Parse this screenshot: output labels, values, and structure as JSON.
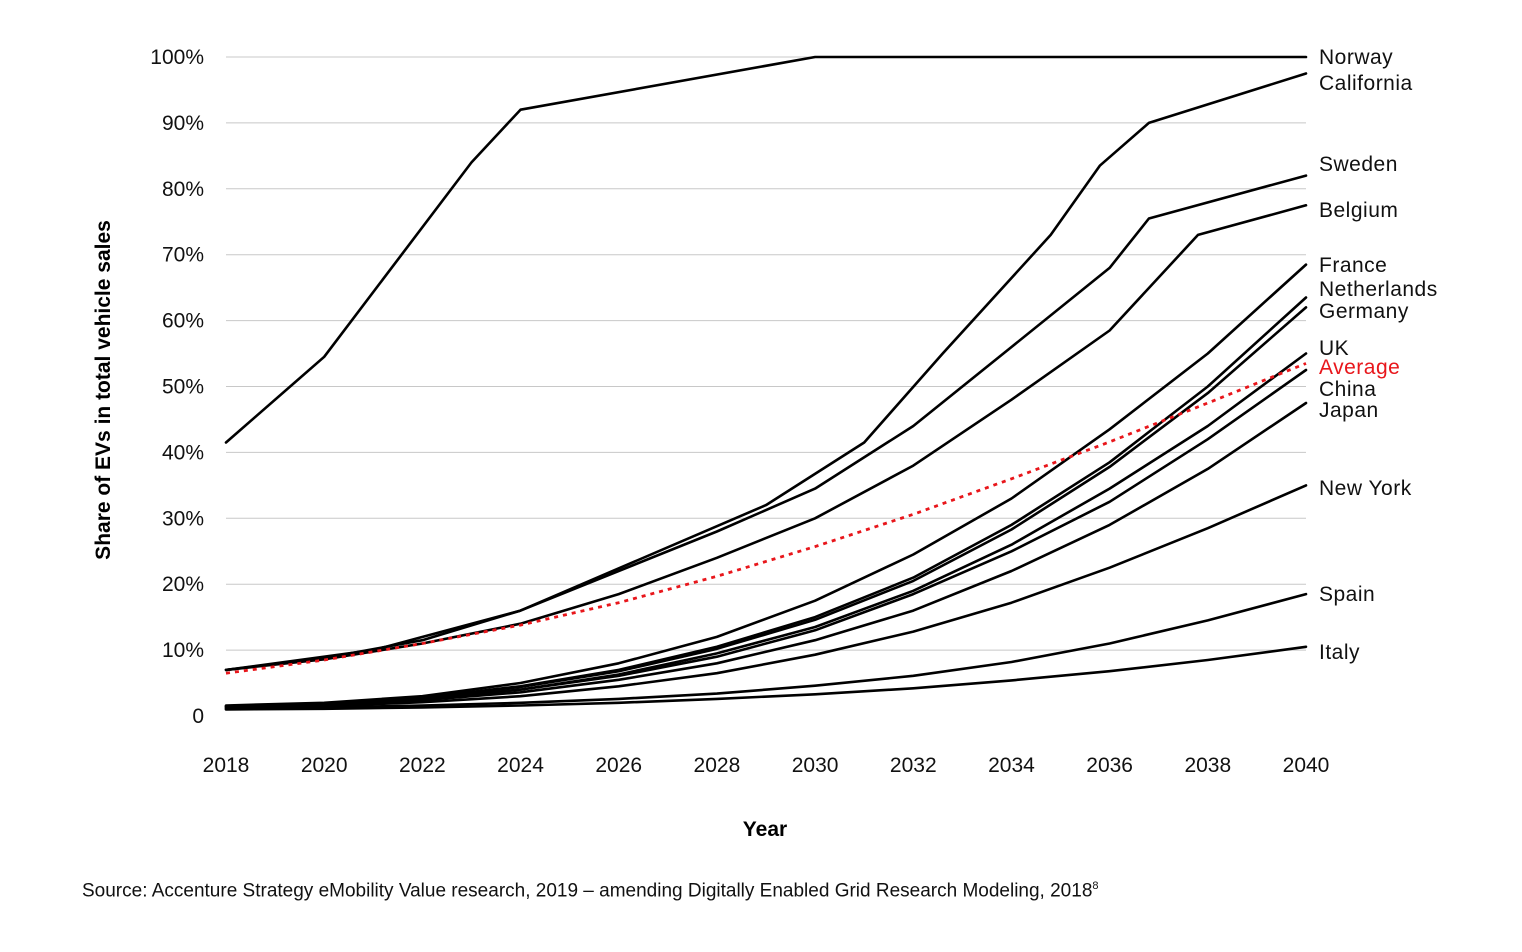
{
  "chart_data": {
    "type": "line",
    "title": "",
    "xlabel": "Year",
    "ylabel": "Share of EVs in total vehicle sales",
    "xlim": [
      2018,
      2040
    ],
    "ylim": [
      0,
      100
    ],
    "x_ticks": [
      "2018",
      "2020",
      "2022",
      "2024",
      "2026",
      "2028",
      "2030",
      "2032",
      "2034",
      "2036",
      "2038",
      "2040"
    ],
    "y_ticks": [
      "0",
      "10%",
      "20%",
      "30%",
      "40%",
      "50%",
      "60%",
      "70%",
      "80%",
      "90%",
      "100%"
    ],
    "grid": "horizontal",
    "legend": "direct labels at right end of lines",
    "colors": {
      "line": "#000000",
      "average": "#e8161b",
      "grid": "#c8c8c8"
    },
    "series": [
      {
        "name": "Norway",
        "color": "#000000",
        "points": [
          [
            2018,
            41.5
          ],
          [
            2020,
            54.5
          ],
          [
            2023,
            84
          ],
          [
            2024,
            92
          ],
          [
            2030,
            100
          ],
          [
            2040,
            100
          ]
        ]
      },
      {
        "name": "California",
        "color": "#000000",
        "points": [
          [
            2018,
            7
          ],
          [
            2021,
            10
          ],
          [
            2024,
            16
          ],
          [
            2029,
            32
          ],
          [
            2031,
            41.5
          ],
          [
            2032.6,
            55
          ],
          [
            2034.8,
            73
          ],
          [
            2035.8,
            83.5
          ],
          [
            2036.8,
            90
          ],
          [
            2040,
            97.5
          ]
        ]
      },
      {
        "name": "Sweden",
        "color": "#000000",
        "points": [
          [
            2018,
            7
          ],
          [
            2020,
            8.8
          ],
          [
            2022,
            11.5
          ],
          [
            2024,
            16
          ],
          [
            2026,
            22
          ],
          [
            2028,
            28
          ],
          [
            2030,
            34.5
          ],
          [
            2032,
            44
          ],
          [
            2034,
            56
          ],
          [
            2036,
            68
          ],
          [
            2036.8,
            75.5
          ],
          [
            2040,
            82
          ]
        ]
      },
      {
        "name": "Belgium",
        "color": "#000000",
        "points": [
          [
            2018,
            7
          ],
          [
            2020,
            8.6
          ],
          [
            2022,
            11
          ],
          [
            2024,
            14
          ],
          [
            2026,
            18.5
          ],
          [
            2028,
            24
          ],
          [
            2030,
            30
          ],
          [
            2032,
            38
          ],
          [
            2034,
            48
          ],
          [
            2036,
            58.5
          ],
          [
            2037.8,
            73
          ],
          [
            2040,
            77.5
          ]
        ]
      },
      {
        "name": "France",
        "color": "#000000",
        "points": [
          [
            2018,
            1.6
          ],
          [
            2020,
            2
          ],
          [
            2022,
            3
          ],
          [
            2024,
            5
          ],
          [
            2026,
            8
          ],
          [
            2028,
            12
          ],
          [
            2030,
            17.5
          ],
          [
            2032,
            24.5
          ],
          [
            2034,
            33
          ],
          [
            2036,
            43.5
          ],
          [
            2038,
            55
          ],
          [
            2040,
            68.5
          ]
        ]
      },
      {
        "name": "Netherlands",
        "color": "#000000",
        "points": [
          [
            2018,
            1.5
          ],
          [
            2020,
            1.9
          ],
          [
            2022,
            2.8
          ],
          [
            2024,
            4.5
          ],
          [
            2026,
            7
          ],
          [
            2028,
            10.5
          ],
          [
            2030,
            15
          ],
          [
            2032,
            21
          ],
          [
            2034,
            29
          ],
          [
            2036,
            38.5
          ],
          [
            2038,
            50
          ],
          [
            2040,
            63.5
          ]
        ]
      },
      {
        "name": "Germany",
        "color": "#000000",
        "points": [
          [
            2018,
            1.5
          ],
          [
            2020,
            1.9
          ],
          [
            2022,
            2.8
          ],
          [
            2024,
            4.4
          ],
          [
            2026,
            6.8
          ],
          [
            2028,
            10.2
          ],
          [
            2030,
            14.6
          ],
          [
            2032,
            20.5
          ],
          [
            2034,
            28.3
          ],
          [
            2036,
            37.8
          ],
          [
            2038,
            49
          ],
          [
            2040,
            62
          ]
        ]
      },
      {
        "name": "UK",
        "color": "#000000",
        "points": [
          [
            2018,
            1.4
          ],
          [
            2020,
            1.8
          ],
          [
            2022,
            2.6
          ],
          [
            2024,
            4
          ],
          [
            2026,
            6.3
          ],
          [
            2028,
            9.5
          ],
          [
            2030,
            13.5
          ],
          [
            2032,
            19
          ],
          [
            2034,
            26
          ],
          [
            2036,
            34.5
          ],
          [
            2038,
            44
          ],
          [
            2040,
            55
          ]
        ]
      },
      {
        "name": "Average",
        "color": "#e8161b",
        "style": "dotted",
        "points": [
          [
            2018,
            6.5
          ],
          [
            2020,
            8.5
          ],
          [
            2022,
            11
          ],
          [
            2024,
            13.8
          ],
          [
            2026,
            17.2
          ],
          [
            2028,
            21.2
          ],
          [
            2030,
            25.7
          ],
          [
            2032,
            30.6
          ],
          [
            2034,
            36
          ],
          [
            2036,
            41.6
          ],
          [
            2038,
            47.5
          ],
          [
            2040,
            53.5
          ]
        ]
      },
      {
        "name": "China",
        "color": "#000000",
        "points": [
          [
            2018,
            1.4
          ],
          [
            2020,
            1.8
          ],
          [
            2022,
            2.6
          ],
          [
            2024,
            4
          ],
          [
            2026,
            6.1
          ],
          [
            2028,
            9
          ],
          [
            2030,
            13
          ],
          [
            2032,
            18.5
          ],
          [
            2034,
            25
          ],
          [
            2036,
            32.5
          ],
          [
            2038,
            42
          ],
          [
            2040,
            52.5
          ]
        ]
      },
      {
        "name": "Japan",
        "color": "#000000",
        "points": [
          [
            2018,
            1.3
          ],
          [
            2020,
            1.7
          ],
          [
            2022,
            2.4
          ],
          [
            2024,
            3.6
          ],
          [
            2026,
            5.5
          ],
          [
            2028,
            8
          ],
          [
            2030,
            11.5
          ],
          [
            2032,
            16
          ],
          [
            2034,
            22
          ],
          [
            2036,
            29
          ],
          [
            2038,
            37.5
          ],
          [
            2040,
            47.5
          ]
        ]
      },
      {
        "name": "New York",
        "color": "#000000",
        "points": [
          [
            2018,
            1.2
          ],
          [
            2020,
            1.5
          ],
          [
            2022,
            2.1
          ],
          [
            2024,
            3
          ],
          [
            2026,
            4.5
          ],
          [
            2028,
            6.5
          ],
          [
            2030,
            9.3
          ],
          [
            2032,
            12.8
          ],
          [
            2034,
            17.2
          ],
          [
            2036,
            22.5
          ],
          [
            2038,
            28.5
          ],
          [
            2040,
            35
          ]
        ]
      },
      {
        "name": "Spain",
        "color": "#000000",
        "points": [
          [
            2018,
            1.1
          ],
          [
            2020,
            1.3
          ],
          [
            2022,
            1.6
          ],
          [
            2024,
            2
          ],
          [
            2026,
            2.6
          ],
          [
            2028,
            3.4
          ],
          [
            2030,
            4.6
          ],
          [
            2032,
            6.1
          ],
          [
            2034,
            8.2
          ],
          [
            2036,
            11
          ],
          [
            2038,
            14.5
          ],
          [
            2040,
            18.5
          ]
        ]
      },
      {
        "name": "Italy",
        "color": "#000000",
        "points": [
          [
            2018,
            1
          ],
          [
            2020,
            1.1
          ],
          [
            2022,
            1.3
          ],
          [
            2024,
            1.6
          ],
          [
            2026,
            2
          ],
          [
            2028,
            2.6
          ],
          [
            2030,
            3.3
          ],
          [
            2032,
            4.2
          ],
          [
            2034,
            5.4
          ],
          [
            2036,
            6.8
          ],
          [
            2038,
            8.5
          ],
          [
            2040,
            10.5
          ]
        ]
      }
    ]
  },
  "footer": {
    "source_text": "Source: Accenture Strategy eMobility Value research, 2019 – amending Digitally Enabled Grid Research Modeling, 2018",
    "footnote_marker": "8"
  }
}
